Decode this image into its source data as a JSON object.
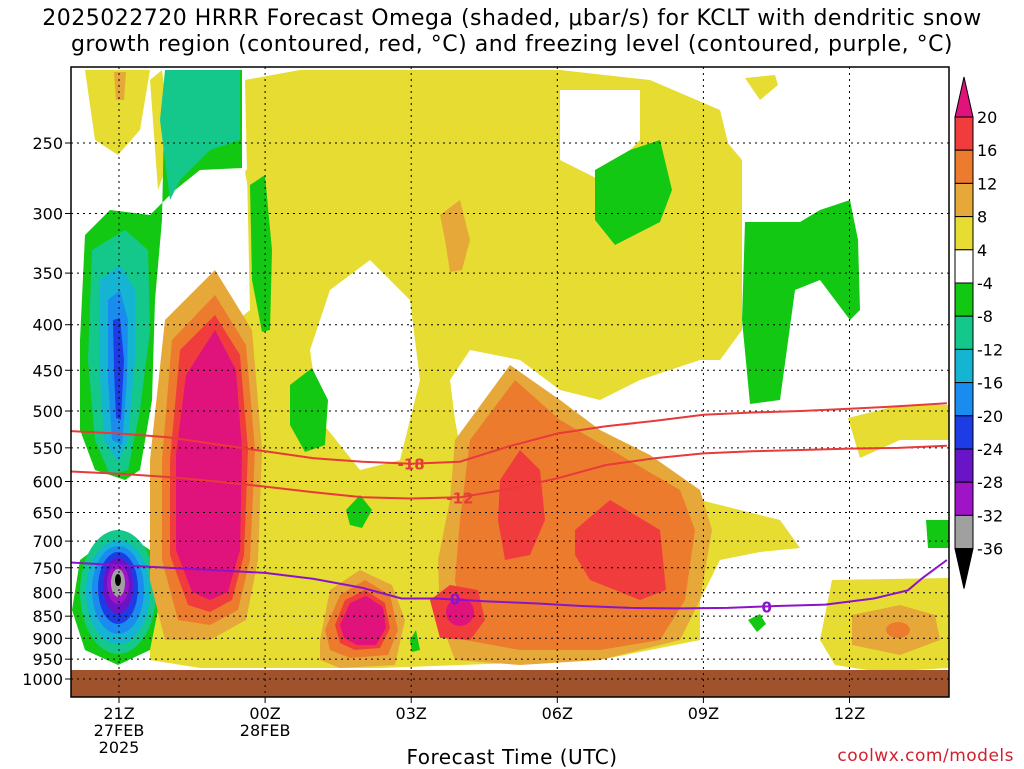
{
  "title": "2025022720 HRRR Forecast Omega (shaded, μbar/s) for KCLT with dendritic snow\ngrowth region (contoured, red, °C) and freezing level (contoured, purple, °C)",
  "credit": "coolwx.com/models",
  "chart_data": {
    "type": "time-height cross section",
    "title": "2025022720 HRRR Forecast Omega (shaded, μbar/s) for KCLT with dendritic snow growth region (contoured, red, °C) and freezing level (contoured, purple, °C)",
    "xlabel": "Forecast Time (UTC)",
    "ylabel": "",
    "y_axis": {
      "scale": "log pressure (hPa)",
      "range": [
        1000,
        200
      ],
      "inverted": true,
      "ticks": [
        250,
        300,
        350,
        400,
        450,
        500,
        550,
        600,
        650,
        700,
        750,
        800,
        850,
        900,
        950,
        1000
      ]
    },
    "x_axis": {
      "range_hours_from_21Z": [
        -1.5,
        17
      ],
      "ticks": [
        {
          "hour": 0,
          "lines": [
            "21Z",
            "27FEB",
            "2025"
          ]
        },
        {
          "hour": 3,
          "lines": [
            "00Z",
            "28FEB"
          ]
        },
        {
          "hour": 6,
          "lines": [
            "03Z"
          ]
        },
        {
          "hour": 9,
          "lines": [
            "06Z"
          ]
        },
        {
          "hour": 12,
          "lines": [
            "09Z"
          ]
        },
        {
          "hour": 15,
          "lines": [
            "12Z"
          ]
        }
      ]
    },
    "grid": true,
    "colorbar": {
      "labels": [
        20,
        16,
        12,
        8,
        4,
        -4,
        -8,
        -12,
        -16,
        -20,
        -24,
        -28,
        -32,
        -36
      ],
      "bins": [
        {
          "range": ">20",
          "color": "#e0137d"
        },
        {
          "range": "16 to 20",
          "color": "#f03c3c"
        },
        {
          "range": "12 to 16",
          "color": "#ec7b2e"
        },
        {
          "range": "8 to 12",
          "color": "#e6a838"
        },
        {
          "range": "4 to 8",
          "color": "#e6dc32"
        },
        {
          "range": "-4 to 4",
          "color": "#ffffff"
        },
        {
          "range": "-8 to -4",
          "color": "#12c812"
        },
        {
          "range": "-12 to -8",
          "color": "#14c88c"
        },
        {
          "range": "-16 to -12",
          "color": "#14b4d2"
        },
        {
          "range": "-20 to -16",
          "color": "#1a8cf0"
        },
        {
          "range": "-24 to -20",
          "color": "#1e3ce6"
        },
        {
          "range": "-28 to -24",
          "color": "#6a14c8"
        },
        {
          "range": "-32 to -28",
          "color": "#a014c8"
        },
        {
          "range": "-36 to -32",
          "color": "#a0a0a0"
        },
        {
          "range": "<-36",
          "color": "#000000"
        }
      ]
    },
    "ground_color": "#a0522d",
    "contours": [
      {
        "name": "-18 °C isotherm",
        "label": "-18",
        "color": "#e83a3a",
        "points": [
          [
            -1.5,
            525
          ],
          [
            0,
            530
          ],
          [
            1,
            535
          ],
          [
            2,
            545
          ],
          [
            3,
            555
          ],
          [
            4,
            565
          ],
          [
            5,
            570
          ],
          [
            6,
            573
          ],
          [
            7,
            570
          ],
          [
            8,
            548
          ],
          [
            9,
            530
          ],
          [
            10,
            520
          ],
          [
            11,
            513
          ],
          [
            12,
            505
          ],
          [
            13,
            502
          ],
          [
            14,
            500
          ],
          [
            15,
            497
          ],
          [
            16,
            494
          ],
          [
            17,
            490
          ]
        ]
      },
      {
        "name": "-12 °C isotherm",
        "label": "-12",
        "color": "#e83a3a",
        "points": [
          [
            -1.5,
            583
          ],
          [
            0,
            588
          ],
          [
            1,
            593
          ],
          [
            2,
            600
          ],
          [
            3,
            608
          ],
          [
            4,
            617
          ],
          [
            5,
            625
          ],
          [
            6,
            627
          ],
          [
            7,
            625
          ],
          [
            8,
            612
          ],
          [
            9,
            595
          ],
          [
            10,
            575
          ],
          [
            11,
            565
          ],
          [
            12,
            558
          ],
          [
            13,
            555
          ],
          [
            14,
            553
          ],
          [
            15,
            551
          ],
          [
            16,
            550
          ],
          [
            17,
            547
          ]
        ]
      },
      {
        "name": "0 °C freezing level",
        "label": "0",
        "color": "#8c14c8",
        "points": [
          [
            -1.5,
            737
          ],
          [
            0,
            745
          ],
          [
            1,
            750
          ],
          [
            2,
            755
          ],
          [
            3,
            760
          ],
          [
            4,
            772
          ],
          [
            5,
            790
          ],
          [
            5.8,
            812
          ],
          [
            6.5,
            812
          ],
          [
            7.5,
            818
          ],
          [
            8.5,
            822
          ],
          [
            9.5,
            828
          ],
          [
            10.5,
            832
          ],
          [
            11.5,
            833
          ],
          [
            12.5,
            832
          ],
          [
            13.5,
            828
          ],
          [
            14.5,
            825
          ],
          [
            15.5,
            812
          ],
          [
            16.2,
            795
          ],
          [
            16.5,
            770
          ],
          [
            17,
            735
          ]
        ]
      }
    ],
    "omega_features": [
      {
        "value_bin": "< -36",
        "center_hour": 0,
        "center_hpa": 785,
        "note": "strong upward motion core at 21Z"
      },
      {
        "value_bin": "-24 to -20",
        "center_hour": 0,
        "center_hpa": 450,
        "note": "upper-level ascent at 21Z"
      },
      {
        "value_bin": "> 20",
        "center_hour": 2.1,
        "center_hpa": 560,
        "note": "descent maximum 22-23Z"
      },
      {
        "value_bin": "> 20",
        "center_hour": 5.3,
        "center_hpa": 850,
        "note": "low-level maximum near 02Z"
      },
      {
        "value_bin": "16 to 20",
        "center_hour": 10.2,
        "center_hpa": 720,
        "note": "mid-level maximum near 07Z"
      },
      {
        "value_bin": "12 to 16",
        "center_hour": 16,
        "center_hpa": 880,
        "note": "weak low-level maximum near 13Z"
      }
    ]
  }
}
